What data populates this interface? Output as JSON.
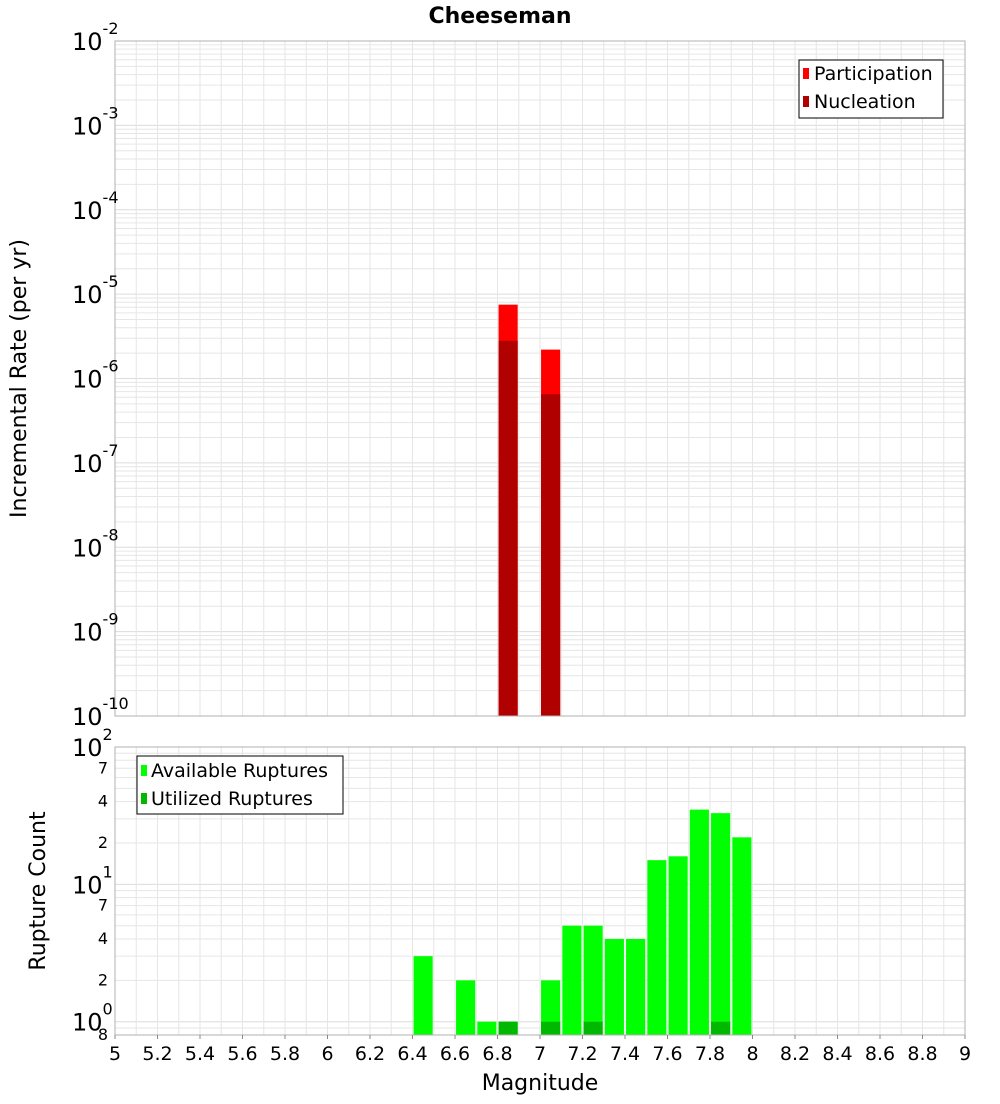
{
  "figure": {
    "title": "Cheeseman",
    "xlabel": "Magnitude",
    "x_ticks": [
      "5",
      "5.2",
      "5.4",
      "5.6",
      "5.8",
      "6",
      "6.2",
      "6.4",
      "6.6",
      "6.8",
      "7",
      "7.2",
      "7.4",
      "7.6",
      "7.8",
      "8",
      "8.2",
      "8.4",
      "8.6",
      "8.8",
      "9"
    ]
  },
  "colors": {
    "participation": "#ff0000",
    "nucleation": "#b00000",
    "available": "#00ff00",
    "utilized": "#00b800",
    "grid": "#e6e6e6",
    "frame": "#b0b0b0"
  },
  "chart_data": [
    {
      "type": "bar",
      "title": "Cheeseman",
      "ylabel": "Incremental Rate (per yr)",
      "xlabel": "",
      "y_scale": "log",
      "xlim": [
        5,
        9
      ],
      "ylim": [
        1e-10,
        0.01
      ],
      "bar_width": 0.09,
      "y_ticks": [
        {
          "base": "10",
          "exp": "-2"
        },
        {
          "base": "10",
          "exp": "-3"
        },
        {
          "base": "10",
          "exp": "-4"
        },
        {
          "base": "10",
          "exp": "-5"
        },
        {
          "base": "10",
          "exp": "-6"
        },
        {
          "base": "10",
          "exp": "-7"
        },
        {
          "base": "10",
          "exp": "-8"
        },
        {
          "base": "10",
          "exp": "-9"
        },
        {
          "base": "10",
          "exp": "-10"
        }
      ],
      "legend": {
        "position": "top-right",
        "items": [
          "Participation",
          "Nucleation"
        ]
      },
      "series": [
        {
          "name": "Participation",
          "x": [
            6.85,
            7.05
          ],
          "values": [
            7.5e-06,
            2.2e-06
          ]
        },
        {
          "name": "Nucleation",
          "x": [
            6.85,
            7.05
          ],
          "values": [
            2.8e-06,
            6.5e-07
          ]
        }
      ],
      "grid": true
    },
    {
      "type": "bar",
      "title": "",
      "ylabel": "Rupture Count",
      "xlabel": "Magnitude",
      "y_scale": "log",
      "xlim": [
        5,
        9
      ],
      "ylim": [
        0.8,
        100
      ],
      "bar_width": 0.09,
      "y_ticks": [
        {
          "major": true,
          "base": "10",
          "exp": "2"
        },
        {
          "major": false,
          "label": "7"
        },
        {
          "major": false,
          "label": "4"
        },
        {
          "major": false,
          "label": "2"
        },
        {
          "major": true,
          "base": "10",
          "exp": "1"
        },
        {
          "major": false,
          "label": "7"
        },
        {
          "major": false,
          "label": "4"
        },
        {
          "major": false,
          "label": "2"
        },
        {
          "major": true,
          "base": "10",
          "exp": "0"
        },
        {
          "major": false,
          "label": "8"
        }
      ],
      "legend": {
        "position": "top-left",
        "items": [
          "Available Ruptures",
          "Utilized Ruptures"
        ]
      },
      "series": [
        {
          "name": "Available Ruptures",
          "x": [
            6.45,
            6.65,
            6.75,
            6.85,
            7.05,
            7.15,
            7.25,
            7.35,
            7.45,
            7.55,
            7.65,
            7.75,
            7.85,
            7.95
          ],
          "values": [
            3,
            2,
            1,
            1,
            2,
            5,
            5,
            4,
            4,
            15,
            16,
            35,
            33,
            22
          ]
        },
        {
          "name": "Utilized Ruptures",
          "x": [
            6.85,
            7.05,
            7.25,
            7.85
          ],
          "values": [
            1,
            1,
            1,
            1
          ]
        }
      ],
      "grid": true
    }
  ]
}
